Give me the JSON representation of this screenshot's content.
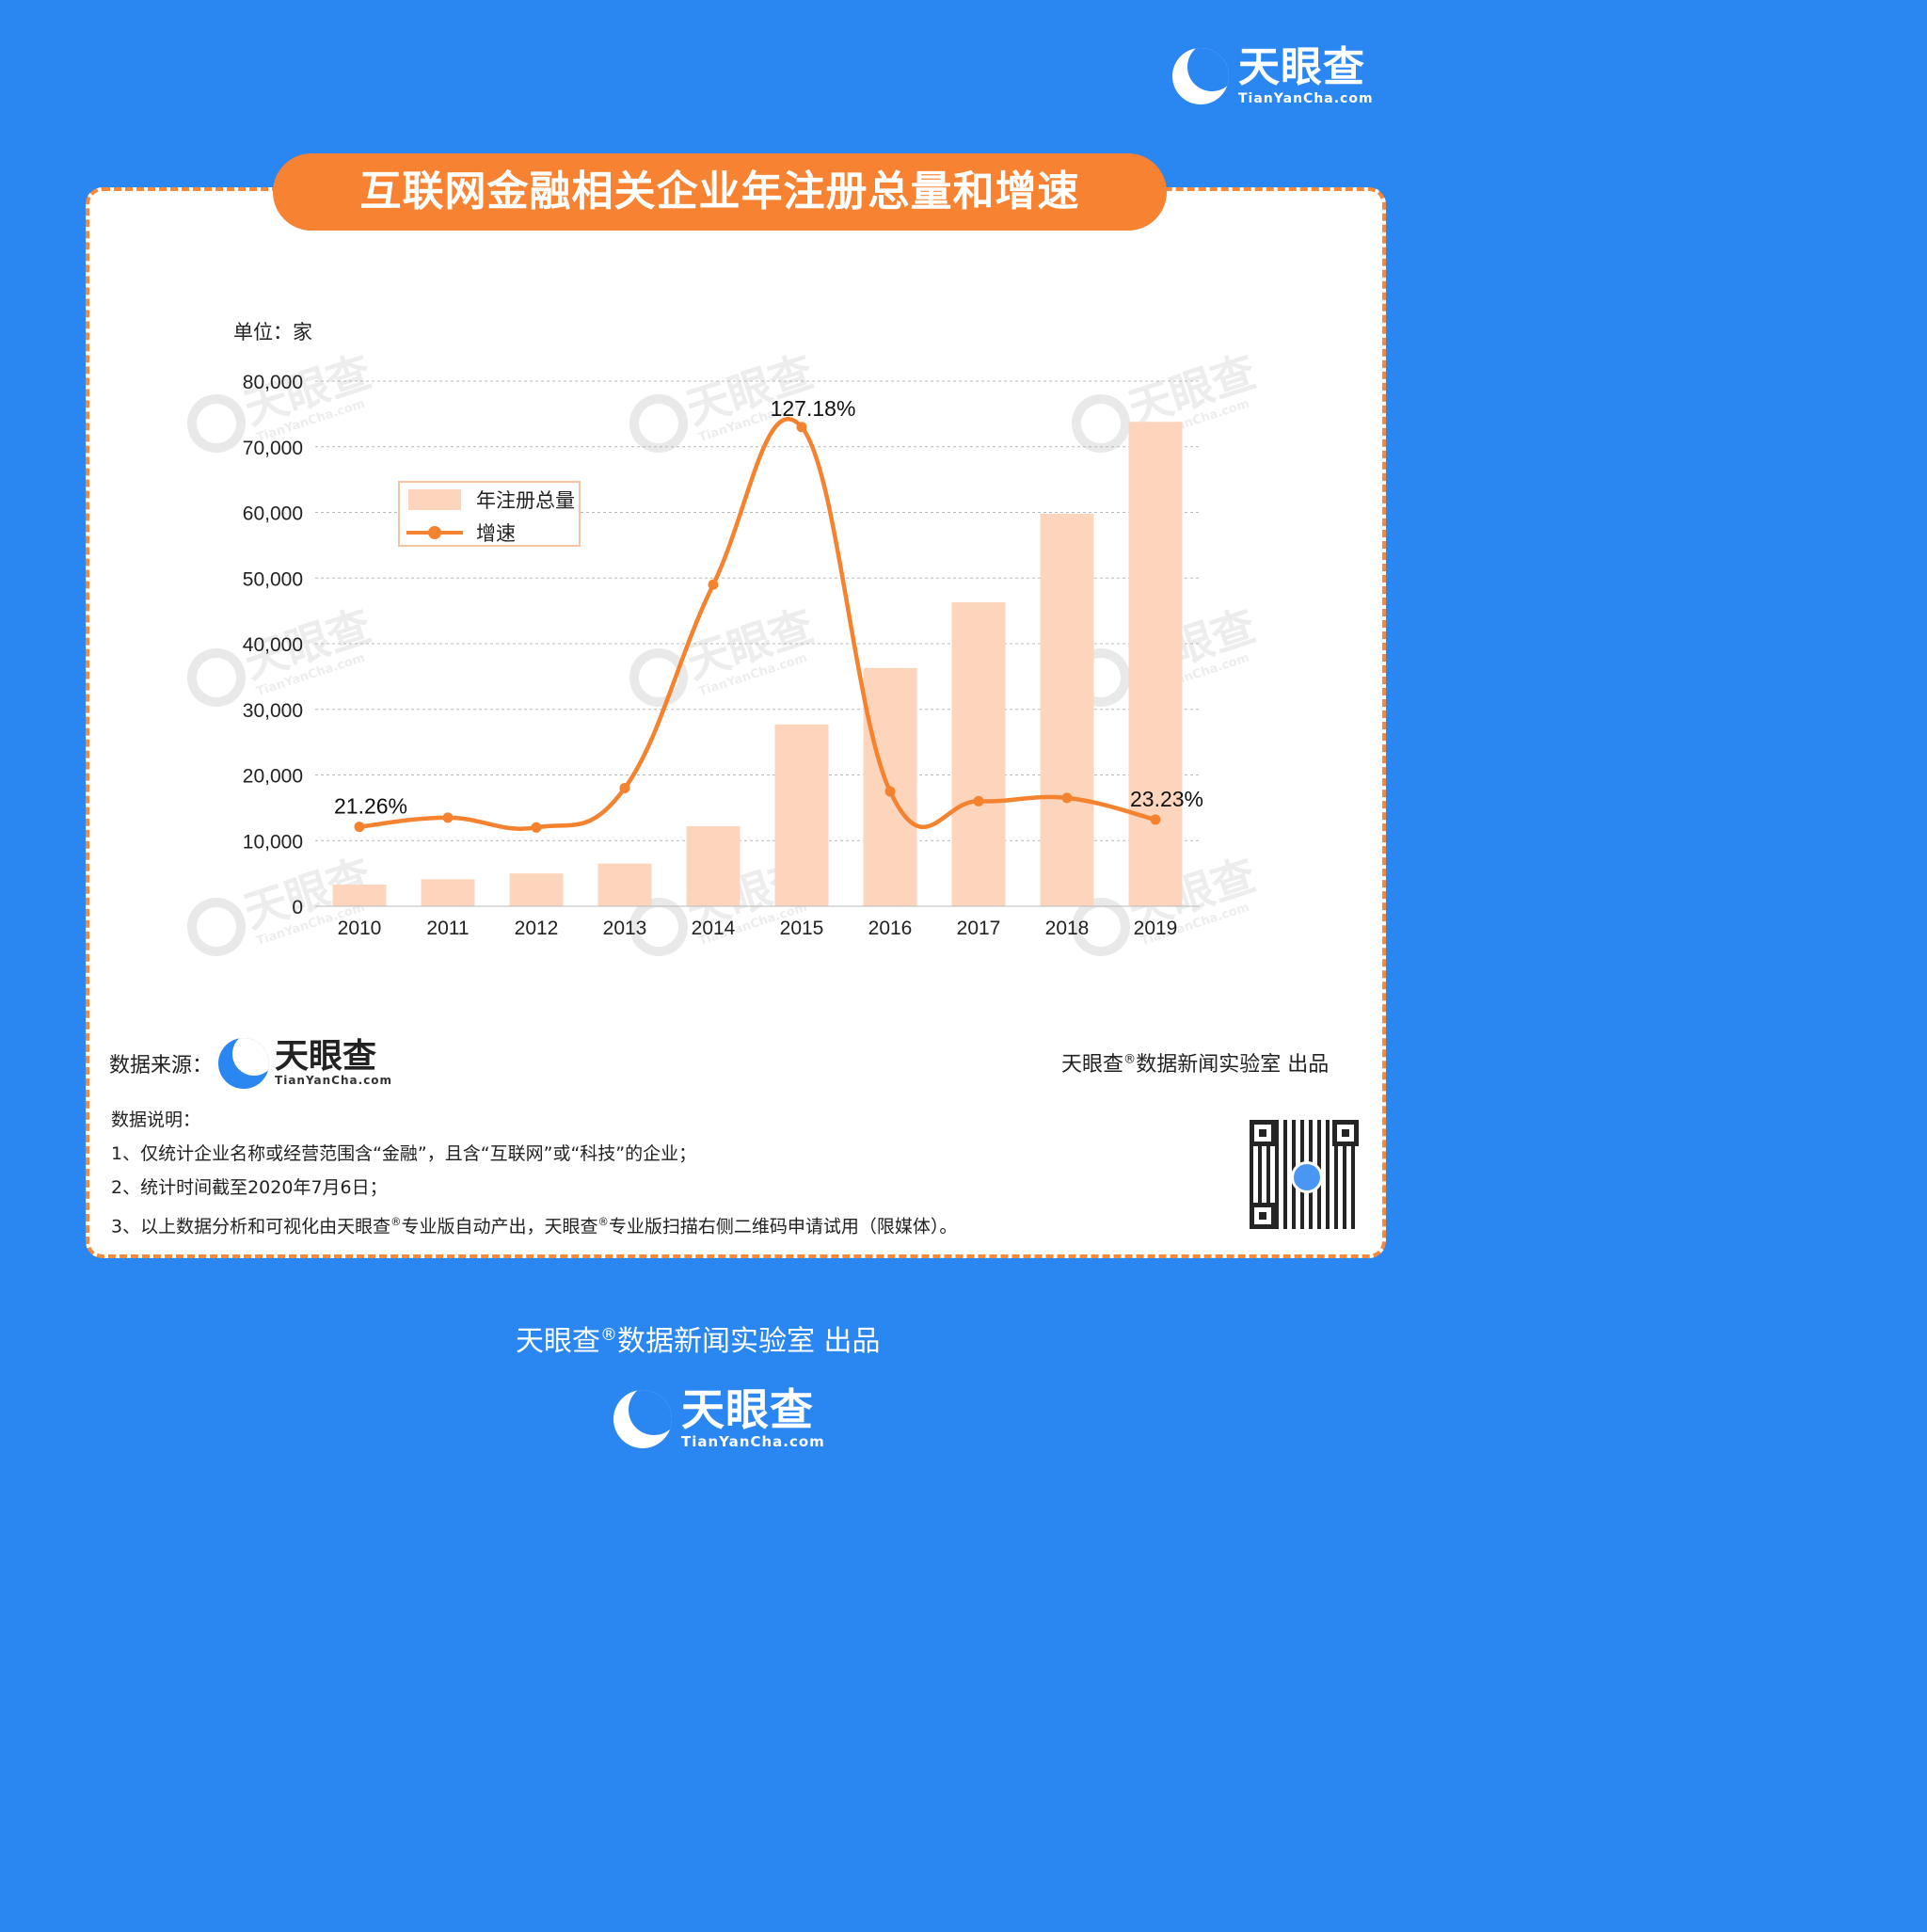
{
  "brand": {
    "name": "天眼查",
    "domain": "TianYanCha.com",
    "primary": "#2a86f0",
    "accent": "#f68232"
  },
  "title": "互联网金融相关企业年注册总量和增速",
  "chart_data": {
    "type": "bar",
    "unit_label": "单位：家",
    "categories": [
      "2010",
      "2011",
      "2012",
      "2013",
      "2014",
      "2015",
      "2016",
      "2017",
      "2018",
      "2019"
    ],
    "ylim": [
      0,
      80000
    ],
    "yticks": [
      "0",
      "10,000",
      "20,000",
      "30,000",
      "40,000",
      "50,000",
      "60,000",
      "70,000",
      "80,000"
    ],
    "series": [
      {
        "name": "年注册总量",
        "type": "bar",
        "color": "#fdd5bc",
        "values": [
          3300,
          4100,
          5000,
          6500,
          12200,
          27700,
          36300,
          46300,
          59800,
          73800
        ]
      },
      {
        "name": "增速",
        "type": "line",
        "color": "#f5822f",
        "plot_values": [
          12100,
          13500,
          12000,
          18000,
          49000,
          73000,
          17500,
          16000,
          16500,
          13200
        ],
        "labels": [
          {
            "index": 0,
            "text": "21.26%"
          },
          {
            "index": 5,
            "text": "127.18%"
          },
          {
            "index": 9,
            "text": "23.23%"
          }
        ]
      }
    ],
    "legend": [
      "年注册总量",
      "增速"
    ]
  },
  "source_label": "数据来源：",
  "credit": {
    "prefix": "天眼查",
    "mark": "®",
    "suffix": "数据新闻实验室 出品"
  },
  "notes": {
    "heading": "数据说明：",
    "line1": "1、仅统计企业名称或经营范围含“金融”，且含“互联网”或“科技”的企业；",
    "line2": "2、统计时间截至2020年7月6日；",
    "line3a": "3、以上数据分析和可视化由天眼查",
    "line3b": "专业版自动产出，天眼查",
    "line3c": "专业版扫描右侧二维码申请试用（限媒体）。"
  }
}
